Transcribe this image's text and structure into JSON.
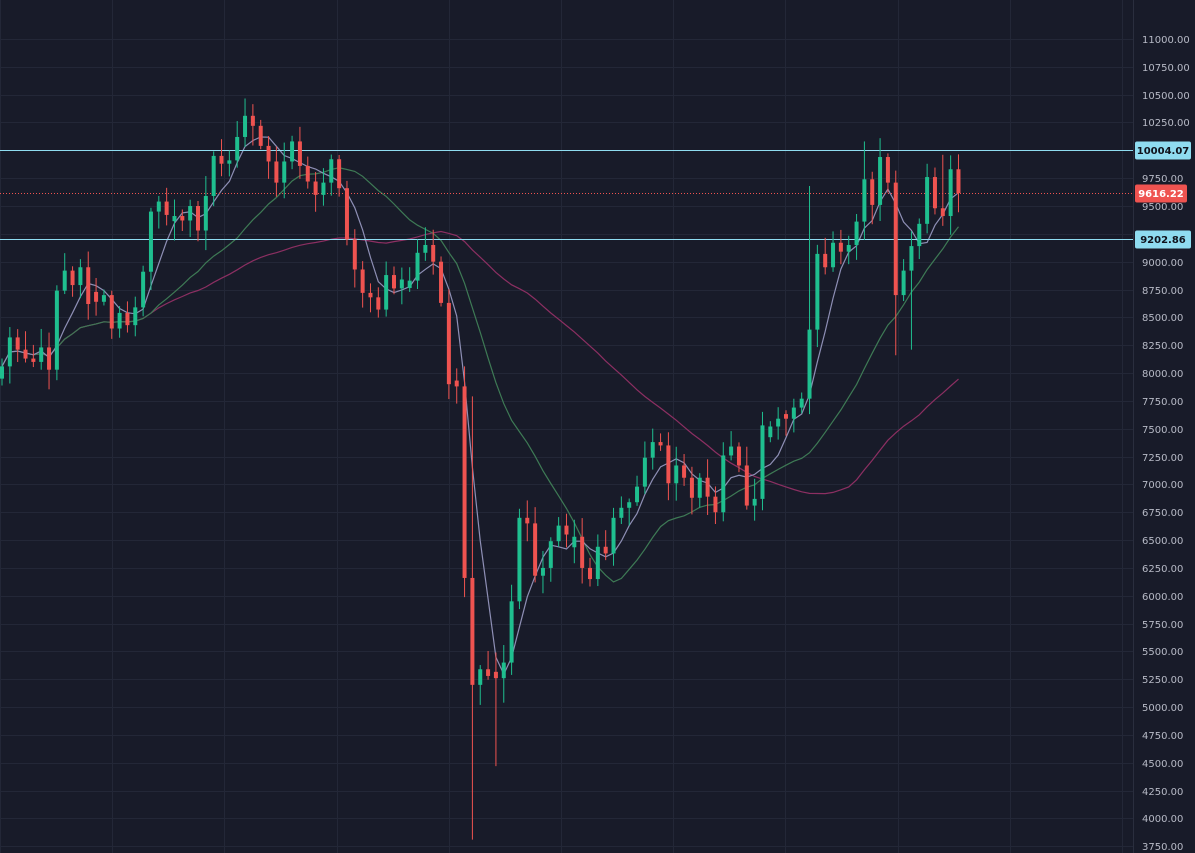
{
  "colors": {
    "background": "#181b29",
    "grid": "#232737",
    "axis_text": "#b7bac6",
    "up": "#26a69a",
    "up_fill": "#1fbf8f",
    "down": "#ef5350",
    "ma_fast": "#8e8fb5",
    "ma_medium": "#3e7a55",
    "ma_slow": "#8c2f62",
    "level_line": "#8fdcf0",
    "current_price": "#ef5350"
  },
  "chart_data": {
    "type": "candlestick",
    "title": "",
    "xlabel": "",
    "ylabel": "",
    "ylim": [
      3690,
      11350
    ],
    "y_ticks": [
      3750,
      4000,
      4250,
      4500,
      4750,
      5000,
      5250,
      5500,
      5750,
      6000,
      6250,
      6500,
      6750,
      7000,
      7250,
      7500,
      7750,
      8000,
      8250,
      8500,
      8750,
      9000,
      9250,
      9500,
      9750,
      10000,
      10250,
      10500,
      10750,
      11000
    ],
    "y_tick_labels": [
      "3750.00",
      "4000.00",
      "4250.00",
      "4500.00",
      "4750.00",
      "5000.00",
      "5250.00",
      "5500.00",
      "5750.00",
      "6000.00",
      "6250.00",
      "6500.00",
      "6750.00",
      "7000.00",
      "7250.00",
      "7500.00",
      "7750.00",
      "8000.00",
      "8250.00",
      "8500.00",
      "8750.00",
      "9000.00",
      "9250.00",
      "9500.00",
      "9750.00",
      "10000.00",
      "10250.00",
      "10500.00",
      "10750.00",
      "11000.00"
    ],
    "grid": true,
    "levels": [
      {
        "label": "10004.07",
        "value": 10004.07,
        "style": "solid"
      },
      {
        "label": "9202.86",
        "value": 9202.86,
        "style": "solid"
      }
    ],
    "current_price": {
      "label": "9616.22",
      "value": 9616.22,
      "style": "dotted"
    },
    "closes": [
      8060,
      8320,
      8210,
      8130,
      8100,
      8230,
      8030,
      8740,
      8920,
      8790,
      8950,
      8620,
      8640,
      8700,
      8400,
      8540,
      8430,
      8590,
      8910,
      9450,
      9540,
      9420,
      9410,
      9370,
      9500,
      9280,
      9590,
      9950,
      9880,
      9910,
      10120,
      10310,
      10220,
      10040,
      9900,
      9710,
      9900,
      10080,
      9860,
      9720,
      9600,
      9710,
      9920,
      9660,
      9200,
      8930,
      8720,
      8680,
      8570,
      8880,
      8760,
      8840,
      8830,
      9080,
      9150,
      9000,
      8630,
      7900,
      7880,
      6160,
      5200,
      5340,
      5280,
      5260,
      5400,
      5950,
      6700,
      6650,
      6180,
      6250,
      6490,
      6630,
      6550,
      6530,
      6250,
      6150,
      6440,
      6380,
      6700,
      6790,
      6840,
      6980,
      7240,
      7380,
      7350,
      7010,
      7170,
      7060,
      6880,
      7060,
      6890,
      6750,
      7260,
      7340,
      7170,
      6810,
      6870,
      7530,
      7520,
      7590,
      7590,
      7690,
      7770,
      8390,
      9070,
      8950,
      9170,
      9090,
      9150,
      9360,
      9740,
      9510,
      9940,
      9710,
      8700,
      8920,
      9140,
      9340,
      9760,
      9480,
      9410,
      9830,
      9616
    ]
  }
}
